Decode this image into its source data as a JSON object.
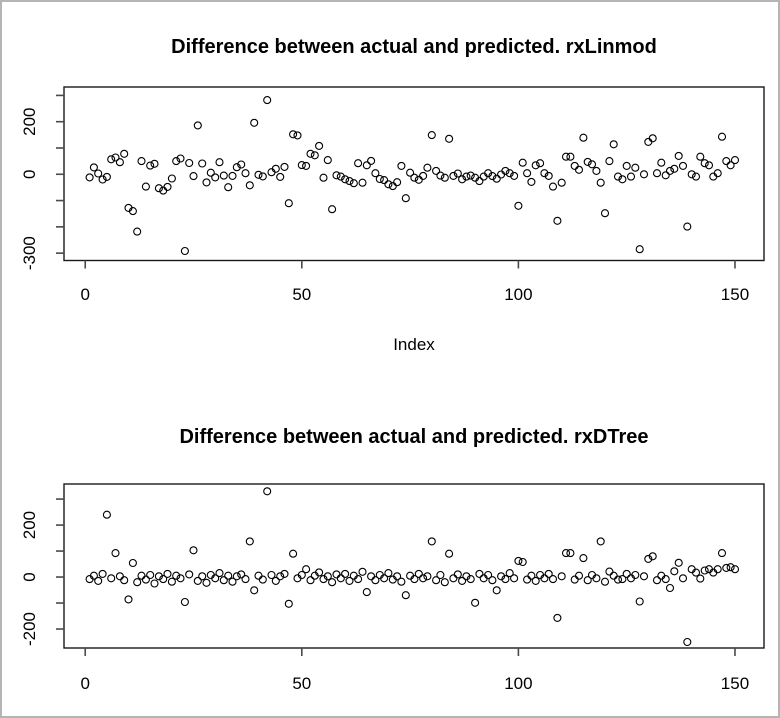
{
  "window": {
    "frame_border_color": "#b4b4b4",
    "background_color": "#ffffff",
    "point_color": "#000000"
  },
  "chart_data": [
    {
      "type": "scatter",
      "title": "Difference between actual and predicted. rxLinmod",
      "xlabel": "Index",
      "ylabel": "",
      "marker": "open-circle",
      "grid": false,
      "xlim": [
        -4.9,
        156.7
      ],
      "ylim": [
        -328,
        332
      ],
      "x_axis": {
        "ticks": [
          {
            "v": 0,
            "label": "0"
          },
          {
            "v": 50,
            "label": "50"
          },
          {
            "v": 100,
            "label": "100"
          },
          {
            "v": 150,
            "label": "150"
          }
        ]
      },
      "y_axis": {
        "ticks": [
          {
            "v": 300,
            "label": ""
          },
          {
            "v": 200,
            "label": "200"
          },
          {
            "v": 100,
            "label": ""
          },
          {
            "v": 0,
            "label": "0"
          },
          {
            "v": -100,
            "label": ""
          },
          {
            "v": -200,
            "label": ""
          },
          {
            "v": -300,
            "label": "-300"
          }
        ]
      },
      "points": [
        [
          1,
          -12
        ],
        [
          2,
          26
        ],
        [
          3,
          3
        ],
        [
          4,
          -20
        ],
        [
          5,
          -10
        ],
        [
          6,
          57
        ],
        [
          7,
          64
        ],
        [
          8,
          46
        ],
        [
          9,
          78
        ],
        [
          10,
          -128
        ],
        [
          11,
          -140
        ],
        [
          12,
          -218
        ],
        [
          13,
          50
        ],
        [
          14,
          -47
        ],
        [
          15,
          33
        ],
        [
          16,
          40
        ],
        [
          17,
          -53
        ],
        [
          18,
          -62
        ],
        [
          19,
          -48
        ],
        [
          20,
          -16
        ],
        [
          21,
          50
        ],
        [
          22,
          60
        ],
        [
          23,
          -292
        ],
        [
          24,
          43
        ],
        [
          25,
          -7
        ],
        [
          26,
          186
        ],
        [
          27,
          41
        ],
        [
          28,
          -31
        ],
        [
          29,
          6
        ],
        [
          30,
          -12
        ],
        [
          31,
          46
        ],
        [
          32,
          -5
        ],
        [
          33,
          -49
        ],
        [
          34,
          -6
        ],
        [
          35,
          27
        ],
        [
          36,
          37
        ],
        [
          37,
          4
        ],
        [
          38,
          -42
        ],
        [
          39,
          196
        ],
        [
          40,
          -2
        ],
        [
          41,
          -8
        ],
        [
          42,
          282
        ],
        [
          43,
          8
        ],
        [
          44,
          21
        ],
        [
          45,
          -10
        ],
        [
          46,
          28
        ],
        [
          47,
          -110
        ],
        [
          48,
          152
        ],
        [
          49,
          148
        ],
        [
          50,
          35
        ],
        [
          51,
          32
        ],
        [
          52,
          78
        ],
        [
          53,
          72
        ],
        [
          54,
          108
        ],
        [
          55,
          -13
        ],
        [
          56,
          54
        ],
        [
          57,
          -133
        ],
        [
          58,
          -4
        ],
        [
          59,
          -9
        ],
        [
          60,
          -19
        ],
        [
          61,
          -26
        ],
        [
          62,
          -34
        ],
        [
          63,
          42
        ],
        [
          64,
          -32
        ],
        [
          65,
          34
        ],
        [
          66,
          51
        ],
        [
          67,
          4
        ],
        [
          68,
          -18
        ],
        [
          69,
          -22
        ],
        [
          70,
          -38
        ],
        [
          71,
          -45
        ],
        [
          72,
          -30
        ],
        [
          73,
          32
        ],
        [
          74,
          -91
        ],
        [
          75,
          6
        ],
        [
          76,
          -13
        ],
        [
          77,
          -21
        ],
        [
          78,
          -6
        ],
        [
          79,
          25
        ],
        [
          80,
          149
        ],
        [
          81,
          13
        ],
        [
          82,
          -5
        ],
        [
          83,
          -13
        ],
        [
          84,
          135
        ],
        [
          85,
          -6
        ],
        [
          86,
          3
        ],
        [
          87,
          -19
        ],
        [
          88,
          -9
        ],
        [
          89,
          -5
        ],
        [
          90,
          -13
        ],
        [
          91,
          -26
        ],
        [
          92,
          -9
        ],
        [
          93,
          4
        ],
        [
          94,
          -7
        ],
        [
          95,
          -17
        ],
        [
          96,
          -1
        ],
        [
          97,
          13
        ],
        [
          98,
          4
        ],
        [
          99,
          -6
        ],
        [
          100,
          -120
        ],
        [
          101,
          44
        ],
        [
          102,
          4
        ],
        [
          103,
          -29
        ],
        [
          104,
          34
        ],
        [
          105,
          42
        ],
        [
          106,
          4
        ],
        [
          107,
          -6
        ],
        [
          108,
          -47
        ],
        [
          109,
          -177
        ],
        [
          110,
          -32
        ],
        [
          111,
          67
        ],
        [
          112,
          67
        ],
        [
          113,
          32
        ],
        [
          114,
          17
        ],
        [
          115,
          139
        ],
        [
          116,
          47
        ],
        [
          117,
          38
        ],
        [
          118,
          13
        ],
        [
          119,
          -32
        ],
        [
          120,
          -148
        ],
        [
          121,
          50
        ],
        [
          122,
          114
        ],
        [
          123,
          -9
        ],
        [
          124,
          -19
        ],
        [
          125,
          32
        ],
        [
          126,
          -9
        ],
        [
          127,
          25
        ],
        [
          128,
          -285
        ],
        [
          129,
          0
        ],
        [
          130,
          123
        ],
        [
          131,
          137
        ],
        [
          132,
          4
        ],
        [
          133,
          44
        ],
        [
          134,
          -4
        ],
        [
          135,
          13
        ],
        [
          136,
          21
        ],
        [
          137,
          70
        ],
        [
          138,
          32
        ],
        [
          139,
          -199
        ],
        [
          140,
          0
        ],
        [
          141,
          -9
        ],
        [
          142,
          67
        ],
        [
          143,
          42
        ],
        [
          144,
          34
        ],
        [
          145,
          -9
        ],
        [
          146,
          4
        ],
        [
          147,
          143
        ],
        [
          148,
          50
        ],
        [
          149,
          34
        ],
        [
          150,
          54
        ]
      ]
    },
    {
      "type": "scatter",
      "title": "Difference between actual and predicted. rxDTree",
      "xlabel": "",
      "ylabel": "",
      "marker": "open-circle",
      "grid": false,
      "xlim": [
        -4.9,
        156.7
      ],
      "ylim": [
        -273,
        358
      ],
      "x_axis": {
        "ticks": [
          {
            "v": 0,
            "label": "0"
          },
          {
            "v": 50,
            "label": "50"
          },
          {
            "v": 100,
            "label": "100"
          },
          {
            "v": 150,
            "label": "150"
          }
        ]
      },
      "y_axis": {
        "ticks": [
          {
            "v": 300,
            "label": ""
          },
          {
            "v": 200,
            "label": "200"
          },
          {
            "v": 100,
            "label": ""
          },
          {
            "v": 0,
            "label": "0"
          },
          {
            "v": -100,
            "label": ""
          },
          {
            "v": -200,
            "label": "-200"
          }
        ]
      },
      "points": [
        [
          1,
          -8
        ],
        [
          2,
          5
        ],
        [
          3,
          -15
        ],
        [
          4,
          12
        ],
        [
          5,
          240
        ],
        [
          6,
          -5
        ],
        [
          7,
          92
        ],
        [
          8,
          3
        ],
        [
          9,
          -12
        ],
        [
          10,
          -86
        ],
        [
          11,
          54
        ],
        [
          12,
          -20
        ],
        [
          13,
          5
        ],
        [
          14,
          -10
        ],
        [
          15,
          8
        ],
        [
          16,
          -25
        ],
        [
          17,
          3
        ],
        [
          18,
          -8
        ],
        [
          19,
          12
        ],
        [
          20,
          -18
        ],
        [
          21,
          5
        ],
        [
          22,
          -5
        ],
        [
          23,
          -96
        ],
        [
          24,
          10
        ],
        [
          25,
          103
        ],
        [
          26,
          -15
        ],
        [
          27,
          3
        ],
        [
          28,
          -22
        ],
        [
          29,
          8
        ],
        [
          30,
          -5
        ],
        [
          31,
          15
        ],
        [
          32,
          -12
        ],
        [
          33,
          5
        ],
        [
          34,
          -18
        ],
        [
          35,
          3
        ],
        [
          36,
          10
        ],
        [
          37,
          -8
        ],
        [
          38,
          137
        ],
        [
          39,
          -51
        ],
        [
          40,
          5
        ],
        [
          41,
          -10
        ],
        [
          42,
          330
        ],
        [
          43,
          8
        ],
        [
          44,
          -15
        ],
        [
          45,
          3
        ],
        [
          46,
          12
        ],
        [
          47,
          -103
        ],
        [
          48,
          90
        ],
        [
          49,
          -5
        ],
        [
          50,
          8
        ],
        [
          51,
          30
        ],
        [
          52,
          -12
        ],
        [
          53,
          5
        ],
        [
          54,
          18
        ],
        [
          55,
          -8
        ],
        [
          56,
          3
        ],
        [
          57,
          -20
        ],
        [
          58,
          10
        ],
        [
          59,
          -5
        ],
        [
          60,
          12
        ],
        [
          61,
          -15
        ],
        [
          62,
          5
        ],
        [
          63,
          -8
        ],
        [
          64,
          20
        ],
        [
          65,
          -58
        ],
        [
          66,
          3
        ],
        [
          67,
          -12
        ],
        [
          68,
          8
        ],
        [
          69,
          -5
        ],
        [
          70,
          15
        ],
        [
          71,
          -10
        ],
        [
          72,
          3
        ],
        [
          73,
          -18
        ],
        [
          74,
          -70
        ],
        [
          75,
          5
        ],
        [
          76,
          -8
        ],
        [
          77,
          12
        ],
        [
          78,
          -5
        ],
        [
          79,
          3
        ],
        [
          80,
          137
        ],
        [
          81,
          -12
        ],
        [
          82,
          8
        ],
        [
          83,
          -20
        ],
        [
          84,
          90
        ],
        [
          85,
          -5
        ],
        [
          86,
          10
        ],
        [
          87,
          -15
        ],
        [
          88,
          3
        ],
        [
          89,
          -8
        ],
        [
          90,
          -99
        ],
        [
          91,
          12
        ],
        [
          92,
          -5
        ],
        [
          93,
          8
        ],
        [
          94,
          -12
        ],
        [
          95,
          -51
        ],
        [
          96,
          3
        ],
        [
          97,
          -8
        ],
        [
          98,
          15
        ],
        [
          99,
          -5
        ],
        [
          100,
          62
        ],
        [
          101,
          58
        ],
        [
          102,
          -10
        ],
        [
          103,
          5
        ],
        [
          104,
          -15
        ],
        [
          105,
          8
        ],
        [
          106,
          -5
        ],
        [
          107,
          12
        ],
        [
          108,
          -8
        ],
        [
          109,
          -157
        ],
        [
          110,
          3
        ],
        [
          111,
          92
        ],
        [
          112,
          92
        ],
        [
          113,
          -10
        ],
        [
          114,
          5
        ],
        [
          115,
          73
        ],
        [
          116,
          -12
        ],
        [
          117,
          8
        ],
        [
          118,
          -5
        ],
        [
          119,
          137
        ],
        [
          120,
          -18
        ],
        [
          121,
          21
        ],
        [
          122,
          5
        ],
        [
          123,
          -10
        ],
        [
          124,
          -8
        ],
        [
          125,
          12
        ],
        [
          126,
          -5
        ],
        [
          127,
          8
        ],
        [
          128,
          -94
        ],
        [
          129,
          3
        ],
        [
          130,
          70
        ],
        [
          131,
          80
        ],
        [
          132,
          -12
        ],
        [
          133,
          5
        ],
        [
          134,
          -8
        ],
        [
          135,
          -42
        ],
        [
          136,
          22
        ],
        [
          137,
          55
        ],
        [
          138,
          -5
        ],
        [
          139,
          -250
        ],
        [
          140,
          30
        ],
        [
          141,
          17
        ],
        [
          142,
          -6
        ],
        [
          143,
          25
        ],
        [
          144,
          30
        ],
        [
          145,
          17
        ],
        [
          146,
          30
        ],
        [
          147,
          92
        ],
        [
          148,
          35
        ],
        [
          149,
          38
        ],
        [
          150,
          30
        ]
      ]
    }
  ]
}
